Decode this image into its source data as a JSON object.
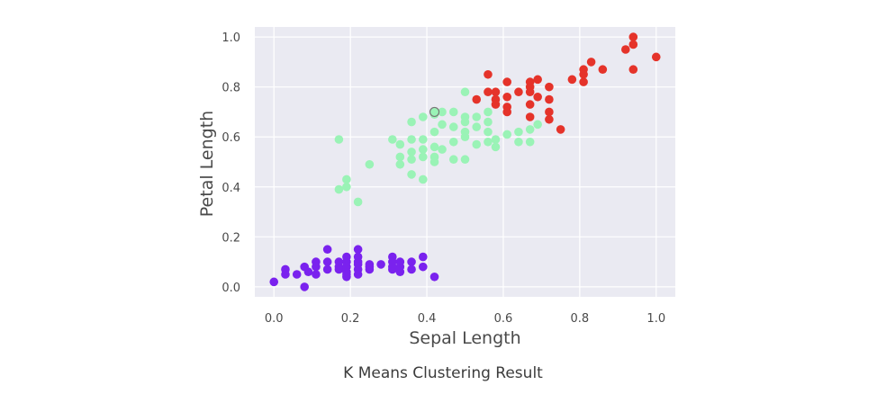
{
  "caption": "K Means Clustering Result",
  "colors": {
    "plot_background": "#eaeaf2",
    "grid": "#ffffff",
    "cluster_purple": "#7a22ee",
    "cluster_green": "#9af3b6",
    "cluster_red": "#e5332a",
    "centroid_edge": "#777777"
  },
  "chart_data": {
    "type": "scatter",
    "title": "",
    "xlabel": "Sepal Length",
    "ylabel": "Petal Length",
    "xlim": [
      -0.05,
      1.05
    ],
    "ylim": [
      -0.04,
      1.04
    ],
    "xticks": [
      0.0,
      0.2,
      0.4,
      0.6,
      0.8,
      1.0
    ],
    "xtick_labels": [
      "0.0",
      "0.2",
      "0.4",
      "0.6",
      "0.8",
      "1.0"
    ],
    "yticks": [
      0.0,
      0.2,
      0.4,
      0.6,
      0.8,
      1.0
    ],
    "ytick_labels": [
      "0.0",
      "0.2",
      "0.4",
      "0.6",
      "0.8",
      "1.0"
    ],
    "grid": true,
    "legend": "none",
    "series": [
      {
        "color": "#7a22ee",
        "points": [
          [
            0.0,
            0.02
          ],
          [
            0.03,
            0.05
          ],
          [
            0.03,
            0.07
          ],
          [
            0.06,
            0.05
          ],
          [
            0.08,
            0.08
          ],
          [
            0.08,
            0.0
          ],
          [
            0.09,
            0.06
          ],
          [
            0.11,
            0.05
          ],
          [
            0.11,
            0.08
          ],
          [
            0.11,
            0.1
          ],
          [
            0.14,
            0.07
          ],
          [
            0.14,
            0.1
          ],
          [
            0.14,
            0.15
          ],
          [
            0.17,
            0.07
          ],
          [
            0.17,
            0.08
          ],
          [
            0.17,
            0.1
          ],
          [
            0.19,
            0.05
          ],
          [
            0.19,
            0.06
          ],
          [
            0.19,
            0.08
          ],
          [
            0.19,
            0.1
          ],
          [
            0.19,
            0.12
          ],
          [
            0.19,
            0.04
          ],
          [
            0.22,
            0.07
          ],
          [
            0.22,
            0.09
          ],
          [
            0.22,
            0.1
          ],
          [
            0.22,
            0.12
          ],
          [
            0.22,
            0.15
          ],
          [
            0.22,
            0.05
          ],
          [
            0.25,
            0.07
          ],
          [
            0.25,
            0.08
          ],
          [
            0.25,
            0.09
          ],
          [
            0.28,
            0.09
          ],
          [
            0.31,
            0.07
          ],
          [
            0.31,
            0.08
          ],
          [
            0.31,
            0.1
          ],
          [
            0.31,
            0.12
          ],
          [
            0.33,
            0.06
          ],
          [
            0.33,
            0.08
          ],
          [
            0.33,
            0.1
          ],
          [
            0.36,
            0.07
          ],
          [
            0.36,
            0.1
          ],
          [
            0.39,
            0.08
          ],
          [
            0.39,
            0.12
          ],
          [
            0.42,
            0.04
          ]
        ]
      },
      {
        "color": "#9af3b6",
        "points": [
          [
            0.17,
            0.59
          ],
          [
            0.17,
            0.39
          ],
          [
            0.19,
            0.4
          ],
          [
            0.19,
            0.43
          ],
          [
            0.22,
            0.34
          ],
          [
            0.25,
            0.49
          ],
          [
            0.31,
            0.59
          ],
          [
            0.33,
            0.57
          ],
          [
            0.33,
            0.52
          ],
          [
            0.33,
            0.49
          ],
          [
            0.36,
            0.66
          ],
          [
            0.36,
            0.59
          ],
          [
            0.36,
            0.54
          ],
          [
            0.36,
            0.51
          ],
          [
            0.36,
            0.45
          ],
          [
            0.39,
            0.68
          ],
          [
            0.39,
            0.59
          ],
          [
            0.39,
            0.55
          ],
          [
            0.39,
            0.52
          ],
          [
            0.39,
            0.43
          ],
          [
            0.42,
            0.69
          ],
          [
            0.42,
            0.62
          ],
          [
            0.42,
            0.56
          ],
          [
            0.42,
            0.52
          ],
          [
            0.42,
            0.5
          ],
          [
            0.44,
            0.7
          ],
          [
            0.44,
            0.65
          ],
          [
            0.44,
            0.55
          ],
          [
            0.47,
            0.7
          ],
          [
            0.47,
            0.64
          ],
          [
            0.47,
            0.58
          ],
          [
            0.47,
            0.51
          ],
          [
            0.5,
            0.78
          ],
          [
            0.5,
            0.68
          ],
          [
            0.5,
            0.66
          ],
          [
            0.5,
            0.62
          ],
          [
            0.5,
            0.6
          ],
          [
            0.5,
            0.51
          ],
          [
            0.53,
            0.68
          ],
          [
            0.53,
            0.64
          ],
          [
            0.53,
            0.57
          ],
          [
            0.56,
            0.7
          ],
          [
            0.56,
            0.66
          ],
          [
            0.56,
            0.62
          ],
          [
            0.56,
            0.58
          ],
          [
            0.58,
            0.59
          ],
          [
            0.58,
            0.56
          ],
          [
            0.61,
            0.61
          ],
          [
            0.64,
            0.62
          ],
          [
            0.64,
            0.58
          ],
          [
            0.67,
            0.63
          ],
          [
            0.67,
            0.58
          ],
          [
            0.69,
            0.65
          ]
        ]
      },
      {
        "color": "#e5332a",
        "points": [
          [
            0.53,
            0.75
          ],
          [
            0.56,
            0.85
          ],
          [
            0.56,
            0.78
          ],
          [
            0.58,
            0.78
          ],
          [
            0.58,
            0.75
          ],
          [
            0.58,
            0.73
          ],
          [
            0.61,
            0.82
          ],
          [
            0.61,
            0.76
          ],
          [
            0.61,
            0.72
          ],
          [
            0.61,
            0.7
          ],
          [
            0.64,
            0.78
          ],
          [
            0.67,
            0.82
          ],
          [
            0.67,
            0.8
          ],
          [
            0.67,
            0.78
          ],
          [
            0.67,
            0.73
          ],
          [
            0.67,
            0.68
          ],
          [
            0.69,
            0.83
          ],
          [
            0.69,
            0.76
          ],
          [
            0.72,
            0.8
          ],
          [
            0.72,
            0.75
          ],
          [
            0.72,
            0.7
          ],
          [
            0.72,
            0.67
          ],
          [
            0.75,
            0.63
          ],
          [
            0.78,
            0.83
          ],
          [
            0.81,
            0.87
          ],
          [
            0.81,
            0.85
          ],
          [
            0.81,
            0.82
          ],
          [
            0.83,
            0.9
          ],
          [
            0.86,
            0.87
          ],
          [
            0.92,
            0.95
          ],
          [
            0.94,
            1.0
          ],
          [
            0.94,
            0.97
          ],
          [
            0.94,
            0.87
          ],
          [
            1.0,
            0.92
          ]
        ]
      }
    ],
    "centroids": [
      {
        "x": 0.42,
        "y": 0.7,
        "color": "#9af3b6"
      }
    ]
  }
}
